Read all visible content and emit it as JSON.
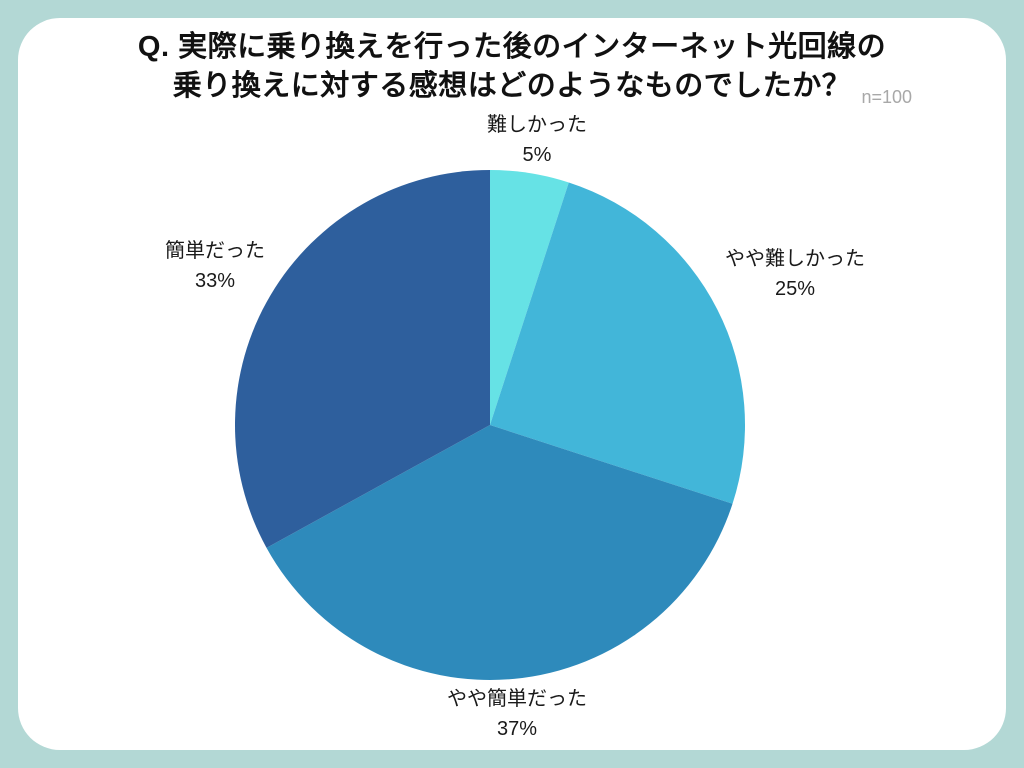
{
  "page": {
    "frame_color": "#b3d8d5",
    "card_color": "#ffffff"
  },
  "chart_data": {
    "type": "pie",
    "title_lines": [
      "Q. 実際に乗り換えを行った後のインターネット光回線の",
      "乗り換えに対する感想はどのようなものでしたか？"
    ],
    "note": "n=100",
    "start_angle_deg": 0,
    "direction": "clockwise",
    "slices": [
      {
        "label": "難しかった",
        "value": 5,
        "value_label": "5%",
        "color": "#66e2e5"
      },
      {
        "label": "やや難しかった",
        "value": 25,
        "value_label": "25%",
        "color": "#42b6d9"
      },
      {
        "label": "やや簡単だった",
        "value": 37,
        "value_label": "37%",
        "color": "#2e8abb"
      },
      {
        "label": "簡単だった",
        "value": 33,
        "value_label": "33%",
        "color": "#2e5f9d"
      }
    ]
  }
}
